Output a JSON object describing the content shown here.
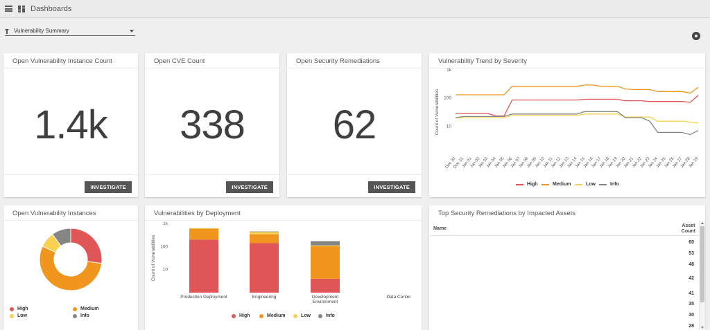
{
  "app": {
    "title": "Dashboards"
  },
  "filter": {
    "label": "Vulnerability Summary"
  },
  "colors": {
    "high": "#e05656",
    "medium": "#f0961e",
    "low": "#f8d24e",
    "info": "#858585",
    "button": "#555555"
  },
  "kpis": [
    {
      "title": "Open Vulnerability Instance Count",
      "value": "1.4k",
      "button": "INVESTIGATE"
    },
    {
      "title": "Open CVE Count",
      "value": "338",
      "button": "INVESTIGATE"
    },
    {
      "title": "Open Security Remediations",
      "value": "62",
      "button": "INVESTIGATE"
    }
  ],
  "trend": {
    "title": "Vulnerability Trend by Severity",
    "chart_data": {
      "type": "line",
      "ylabel": "Count of Vulnerabilities",
      "yscale": "log",
      "yticks": [
        "1k",
        "100",
        "10"
      ],
      "ytick_values": [
        1000,
        100,
        10
      ],
      "ylim": [
        1,
        1000
      ],
      "x": [
        "Dec 30",
        "Dec 31",
        "Jan 01",
        "Jan 02",
        "Jan 03",
        "Jan 04",
        "Jan 05",
        "Jan 06",
        "Jan 07",
        "Jan 08",
        "Jan 09",
        "Jan 10",
        "Jan 11",
        "Jan 12",
        "Jan 13",
        "Jan 14",
        "Jan 15",
        "Jan 16",
        "Jan 17",
        "Jan 18",
        "Jan 19",
        "Jan 20",
        "Jan 21",
        "Jan 22",
        "Jan 23",
        "Jan 24",
        "Jan 25",
        "Jan 26",
        "Jan 27",
        "Jan 28",
        "Jan 29"
      ],
      "series": [
        {
          "name": "High",
          "color": "#e05656",
          "values": [
            28,
            28,
            28,
            28,
            28,
            23,
            23,
            85,
            85,
            85,
            85,
            85,
            85,
            85,
            85,
            85,
            90,
            90,
            90,
            90,
            90,
            80,
            80,
            80,
            75,
            75,
            75,
            75,
            75,
            70,
            125
          ]
        },
        {
          "name": "Medium",
          "color": "#f0961e",
          "values": [
            130,
            130,
            130,
            130,
            130,
            130,
            130,
            260,
            260,
            260,
            260,
            260,
            260,
            260,
            260,
            260,
            290,
            290,
            260,
            260,
            260,
            210,
            200,
            200,
            200,
            170,
            170,
            170,
            170,
            150,
            240
          ]
        },
        {
          "name": "Low",
          "color": "#f8d24e",
          "values": [
            20,
            20,
            20,
            20,
            20,
            20,
            20,
            24,
            24,
            24,
            24,
            24,
            24,
            24,
            24,
            24,
            27,
            27,
            27,
            27,
            27,
            21,
            21,
            21,
            21,
            15,
            15,
            15,
            15,
            14,
            13
          ]
        },
        {
          "name": "Info",
          "color": "#858585",
          "values": [
            20,
            22,
            22,
            22,
            22,
            22,
            22,
            27,
            27,
            27,
            27,
            27,
            27,
            27,
            27,
            27,
            33,
            33,
            33,
            33,
            33,
            20,
            20,
            20,
            15,
            6,
            6,
            6,
            6,
            5,
            7
          ]
        }
      ]
    }
  },
  "donut": {
    "title": "Open Vulnerability Instances",
    "chart_data": {
      "type": "pie",
      "labels": [
        "High",
        "Medium",
        "Low",
        "Info"
      ],
      "values": [
        27,
        55,
        8,
        10
      ],
      "colors": [
        "#e05656",
        "#f0961e",
        "#f8d24e",
        "#858585"
      ]
    }
  },
  "deployment": {
    "title": "Vulnerabilities by Deployment",
    "chart_data": {
      "type": "bar",
      "stacked": true,
      "yscale": "log",
      "ylabel": "Count of Vulnerabilities",
      "yticks": [
        "1k",
        "100",
        "10"
      ],
      "ytick_values": [
        1000,
        100,
        10
      ],
      "ylim": [
        1,
        1000
      ],
      "categories": [
        "Production Deployment",
        "Engineering",
        "Development Environment",
        "Data Center"
      ],
      "category_lines": [
        [
          "Production Deployment"
        ],
        [
          "Engineering"
        ],
        [
          "Development",
          "Environment"
        ],
        [
          "Data Center"
        ]
      ],
      "series": [
        {
          "name": "High",
          "color": "#e05656",
          "values": [
            200,
            140,
            4,
            0
          ]
        },
        {
          "name": "Medium",
          "color": "#f0961e",
          "values": [
            400,
            200,
            100,
            0
          ]
        },
        {
          "name": "Low",
          "color": "#f8d24e",
          "values": [
            15,
            85,
            7,
            0
          ]
        },
        {
          "name": "Info",
          "color": "#858585",
          "values": [
            0,
            25,
            60,
            0
          ]
        }
      ]
    }
  },
  "table": {
    "title": "Top Security Remediations by Impacted Assets",
    "col_name": "Name",
    "col_count": [
      "Asset",
      "Count"
    ],
    "rows": [
      "60",
      "53",
      "48",
      "42",
      "41",
      "35",
      "30",
      "28"
    ]
  }
}
